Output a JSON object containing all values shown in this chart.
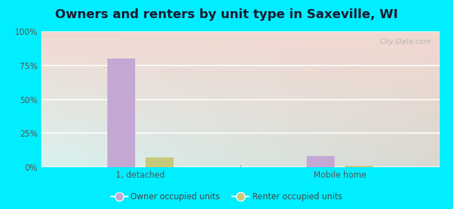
{
  "title": "Owners and renters by unit type in Saxeville, WI",
  "categories": [
    "1, detached",
    "Mobile home"
  ],
  "owner_values": [
    80,
    8
  ],
  "renter_values": [
    7,
    1
  ],
  "owner_color": "#c4a8d4",
  "renter_color": "#c8c87a",
  "ylim": [
    0,
    100
  ],
  "yticks": [
    0,
    25,
    50,
    75,
    100
  ],
  "ytick_labels": [
    "0%",
    "25%",
    "50%",
    "75%",
    "100%"
  ],
  "legend_owner": "Owner occupied units",
  "legend_renter": "Renter occupied units",
  "bg_outer": "#00eeff",
  "watermark": "City-Data.com",
  "title_fontsize": 13,
  "bar_width": 0.28,
  "group_positions": [
    1,
    3
  ]
}
